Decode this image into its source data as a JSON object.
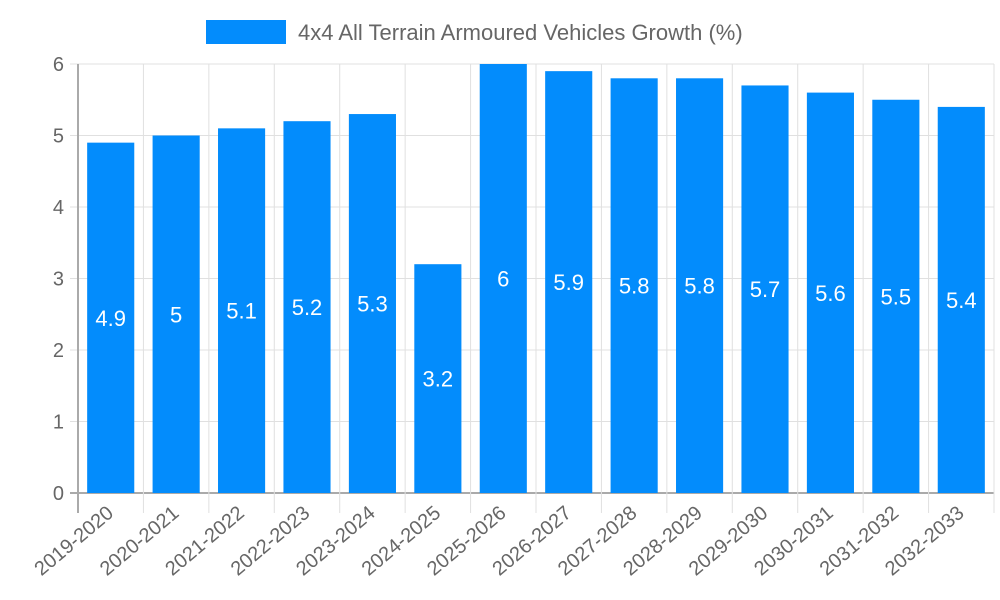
{
  "legend": {
    "label": "4x4 All Terrain Armoured Vehicles Growth (%)",
    "color": "#038cfc"
  },
  "colors": {
    "bar": "#038cfc",
    "grid": "#e0e0e0",
    "axis": "#aaaaaa",
    "text": "#666666",
    "bar_label": "#ffffff"
  },
  "chart_data": {
    "type": "bar",
    "title": "",
    "xlabel": "",
    "ylabel": "",
    "legend": [
      "4x4 All Terrain Armoured Vehicles Growth (%)"
    ],
    "legend_position": "top",
    "grid": true,
    "ylim": [
      0,
      6
    ],
    "yticks": [
      0,
      1,
      2,
      3,
      4,
      5,
      6
    ],
    "categories": [
      "2019-2020",
      "2020-2021",
      "2021-2022",
      "2022-2023",
      "2023-2024",
      "2024-2025",
      "2025-2026",
      "2026-2027",
      "2027-2028",
      "2028-2029",
      "2029-2030",
      "2030-2031",
      "2031-2032",
      "2032-2033"
    ],
    "series": [
      {
        "name": "4x4 All Terrain Armoured Vehicles Growth (%)",
        "values": [
          4.9,
          5,
          5.1,
          5.2,
          5.3,
          3.2,
          6,
          5.9,
          5.8,
          5.8,
          5.7,
          5.6,
          5.5,
          5.4
        ],
        "data_labels": [
          "4.9",
          "5",
          "5.1",
          "5.2",
          "5.3",
          "3.2",
          "6",
          "5.9",
          "5.8",
          "5.8",
          "5.7",
          "5.6",
          "5.5",
          "5.4"
        ]
      }
    ]
  }
}
